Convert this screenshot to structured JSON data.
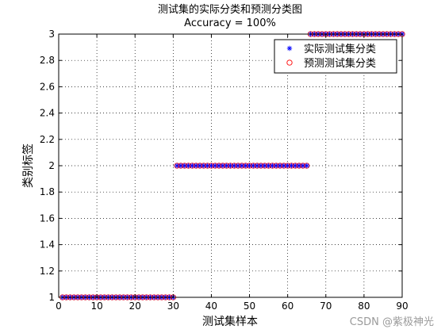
{
  "chart_data": {
    "type": "scatter",
    "title": "测试集的实际分类和预测分类图",
    "subtitle": "Accuracy = 100%",
    "xlabel": "测试集样本",
    "ylabel": "类别标签",
    "xlim": [
      0,
      90
    ],
    "ylim": [
      1,
      3
    ],
    "xticks": [
      "0",
      "10",
      "20",
      "30",
      "40",
      "50",
      "60",
      "70",
      "80",
      "90"
    ],
    "yticks": [
      "1",
      "1.2",
      "1.4",
      "1.6",
      "1.8",
      "2",
      "2.2",
      "2.4",
      "2.6",
      "2.8",
      "3"
    ],
    "grid": true,
    "legend_position": "top-right",
    "segments": [
      {
        "x_start": 1,
        "x_end": 30,
        "y": 1
      },
      {
        "x_start": 31,
        "x_end": 65,
        "y": 2
      },
      {
        "x_start": 66,
        "x_end": 90,
        "y": 3
      }
    ],
    "series": [
      {
        "name": "实际测试集分类",
        "marker": "star",
        "color": "#0000ff"
      },
      {
        "name": "预测测试集分类",
        "marker": "circle",
        "color": "#ff0000"
      }
    ]
  },
  "watermark": "CSDN @紫极神光"
}
